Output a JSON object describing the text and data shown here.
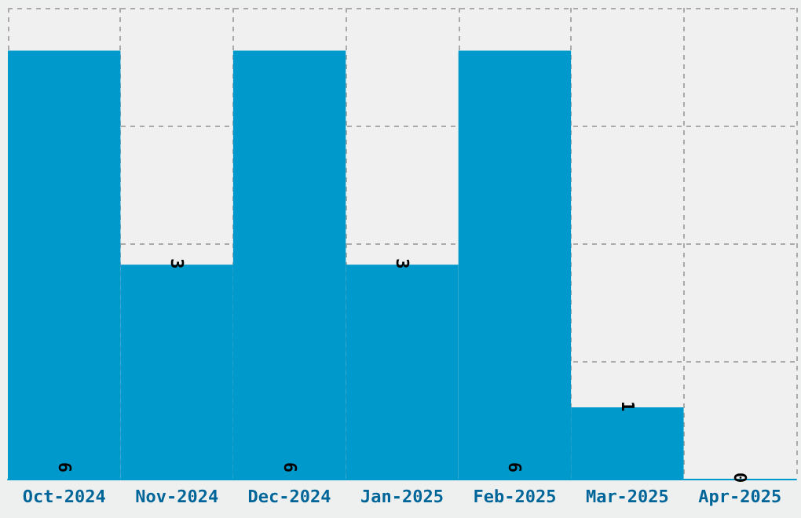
{
  "chart_data": {
    "type": "bar",
    "categories": [
      "Oct-2024",
      "Nov-2024",
      "Dec-2024",
      "Jan-2025",
      "Feb-2025",
      "Mar-2025",
      "Apr-2025"
    ],
    "values": [
      6,
      3,
      6,
      3,
      6,
      1,
      0
    ],
    "color": "#0099cc",
    "ylim": [
      0,
      6.6
    ],
    "yticks": [
      {
        "value": 0,
        "label": null
      },
      {
        "value": 1.65,
        "label": null
      },
      {
        "value": 3.3,
        "label": null
      },
      {
        "value": 4.95,
        "label": null
      },
      {
        "value": 6.6,
        "label": null
      }
    ],
    "tick_labels": "x",
    "grid": true,
    "data_labels": true
  }
}
